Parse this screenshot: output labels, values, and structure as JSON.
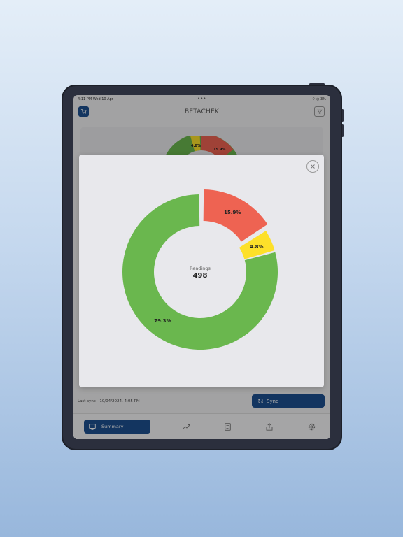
{
  "status_bar": {
    "time": "4:11 PM  Wed 10 Apr",
    "dots": "•••",
    "right": "⌔ ◎ 3%"
  },
  "header": {
    "brand": "BETACHEK"
  },
  "footer": {
    "last_sync": "Last sync - 10/04/2024, 4:05 PM",
    "sync_label": "Sync"
  },
  "tabbar": {
    "summary_label": "Summary"
  },
  "modal": {
    "center_label": "Readings",
    "center_value": "498"
  },
  "chart_data": {
    "type": "pie",
    "categories": [
      "red",
      "yellow",
      "green"
    ],
    "values": [
      15.9,
      4.8,
      79.3
    ],
    "labels": [
      "15.9%",
      "4.8%",
      "79.3%"
    ],
    "colors": [
      "#ee6352",
      "#fde02a",
      "#6ab74e"
    ],
    "total_readings": 498
  },
  "background_chart": {
    "labels": [
      "4.8%",
      "15.9%"
    ]
  },
  "colors": {
    "primary": "#1d4f8f"
  }
}
